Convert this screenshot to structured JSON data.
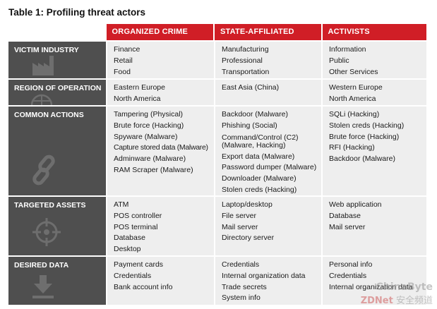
{
  "title": "Table 1: Profiling threat actors",
  "columns": [
    "ORGANIZED CRIME",
    "STATE-AFFILIATED",
    "ACTIVISTS"
  ],
  "rows": [
    {
      "label": "VICTIM INDUSTRY",
      "icon": "factory-icon",
      "organized": [
        "Finance",
        "Retail",
        "Food"
      ],
      "state": [
        "Manufacturing",
        "Professional",
        "Transportation"
      ],
      "activists": [
        "Information",
        "Public",
        "Other Services"
      ]
    },
    {
      "label": "REGION OF OPERATION",
      "icon": "globe-icon",
      "organized": [
        "Eastern Europe",
        "North America"
      ],
      "state": [
        "East Asia (China)"
      ],
      "activists": [
        "Western Europe",
        "North America"
      ]
    },
    {
      "label": "COMMON ACTIONS",
      "icon": "chain-link-icon",
      "organized": [
        "Tampering (Physical)",
        "Brute force (Hacking)",
        "Spyware (Malware)",
        "Capture stored data (Malware)",
        "Adminware (Malware)",
        "RAM Scraper (Malware)"
      ],
      "state": [
        "Backdoor (Malware)",
        "Phishing (Social)",
        "Command/Control (C2) (Malware, Hacking)",
        "Export data (Malware)",
        "Password dumper (Malware)",
        "Downloader (Malware)",
        "Stolen creds (Hacking)"
      ],
      "activists": [
        "SQLi (Hacking)",
        "Stolen creds (Hacking)",
        "Brute force (Hacking)",
        "RFI (Hacking)",
        "Backdoor (Malware)"
      ]
    },
    {
      "label": "TARGETED ASSETS",
      "icon": "crosshair-icon",
      "organized": [
        "ATM",
        "POS controller",
        "POS terminal",
        "Database",
        "Desktop"
      ],
      "state": [
        "Laptop/desktop",
        "File server",
        "Mail server",
        "Directory server"
      ],
      "activists": [
        "Web application",
        "Database",
        "Mail server"
      ]
    },
    {
      "label": "DESIRED DATA",
      "icon": "download-icon",
      "organized": [
        "Payment cards",
        "Credentials",
        "Bank account info"
      ],
      "state": [
        "Credentials",
        "Internal organization data",
        "Trade secrets",
        "System info"
      ],
      "activists": [
        "Personal info",
        "Credentials",
        "Internal organization data"
      ]
    }
  ],
  "watermark": {
    "top": "ChinaByte",
    "left": "ZDNet",
    "right": "安全频道"
  },
  "colors": {
    "header_red": "#d01e26",
    "rowhead_gray": "#4f4f4f",
    "cell_gray": "#eeeeee"
  }
}
